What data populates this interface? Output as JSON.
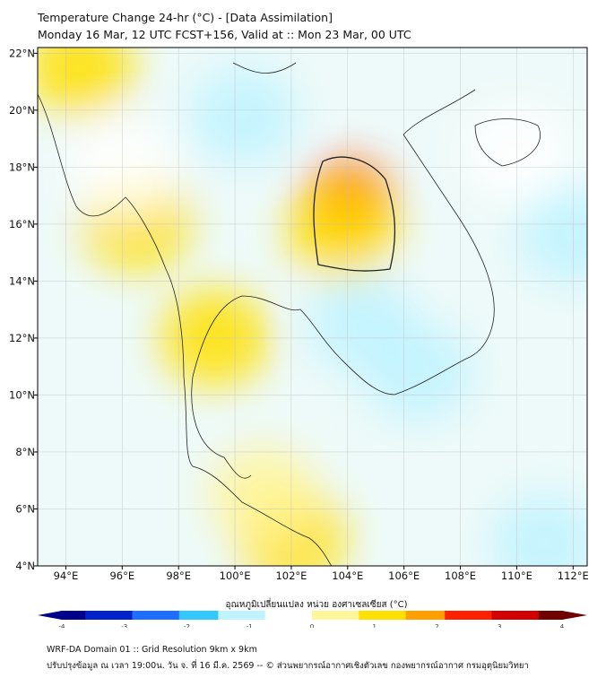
{
  "title": {
    "line1": "Temperature Change 24-hr (°C) - [Data Assimilation]",
    "line2": "Monday 16 Mar, 12 UTC FCST+156, Valid at :: Mon 23 Mar, 00 UTC"
  },
  "map": {
    "lon_range": [
      93,
      112.5
    ],
    "lat_range": [
      4,
      22.2
    ],
    "lon_ticks": [
      "94°E",
      "96°E",
      "98°E",
      "100°E",
      "102°E",
      "104°E",
      "106°E",
      "108°E",
      "110°E",
      "112°E"
    ],
    "lon_values": [
      94,
      96,
      98,
      100,
      102,
      104,
      106,
      108,
      110,
      112
    ],
    "lat_ticks": [
      "22°N",
      "20°N",
      "18°N",
      "16°N",
      "14°N",
      "12°N",
      "10°N",
      "8°N",
      "6°N",
      "4°N"
    ],
    "lat_values": [
      22,
      20,
      18,
      16,
      14,
      12,
      10,
      8,
      6,
      4
    ],
    "anomalies": [
      {
        "lon": 104.0,
        "lat": 16.8,
        "value": 2.3
      },
      {
        "lon": 103.8,
        "lat": 15.8,
        "value": 1.3
      },
      {
        "lon": 94.5,
        "lat": 21.5,
        "value": 0.9
      },
      {
        "lon": 100.3,
        "lat": 19.8,
        "value": -0.9
      },
      {
        "lon": 112,
        "lat": 15.6,
        "value": -1.0
      },
      {
        "lon": 104.5,
        "lat": 12.5,
        "value": -0.9
      },
      {
        "lon": 106.5,
        "lat": 10.8,
        "value": -1.1
      },
      {
        "lon": 99.3,
        "lat": 12,
        "value": 0.8
      },
      {
        "lon": 102,
        "lat": 5,
        "value": 0.8
      },
      {
        "lon": 101,
        "lat": 6.5,
        "value": 0.7
      },
      {
        "lon": 111,
        "lat": 4.8,
        "value": -0.9
      },
      {
        "lon": 96.5,
        "lat": 16.1,
        "value": 0.8
      },
      {
        "lon": 96,
        "lat": 18,
        "value": -0.5
      },
      {
        "lon": 110,
        "lat": 18.5,
        "value": -0.6
      }
    ]
  },
  "colorbar": {
    "label": "อุณหภูมิเปลี่ยนแปลง หน่วย องศาเซลเซียส (°C)",
    "ticks": [
      "-4",
      "-3",
      "-2",
      "-1",
      "0",
      "1",
      "2",
      "3",
      "4"
    ],
    "tick_values": [
      -4,
      -3,
      -2,
      -1,
      0,
      1,
      2,
      3,
      4
    ],
    "colors": [
      "#00008b",
      "#0022cc",
      "#1e6fff",
      "#33c8ff",
      "#bff3ff",
      "#ffffff",
      "#fff59a",
      "#ffe000",
      "#ffa000",
      "#ff2000",
      "#d00000",
      "#700000"
    ]
  },
  "footer": {
    "line1": "WRF-DA Domain 01 :: Grid Resolution 9km x 9km",
    "line2": "ปรับปรุงข้อมูล ณ เวลา 19:00น. วัน จ. ที่ 16 มี.ค. 2569 -- © ส่วนพยากรณ์อากาศเชิงตัวเลข กองพยากรณ์อากาศ กรมอุตุนิยมวิทยา"
  }
}
